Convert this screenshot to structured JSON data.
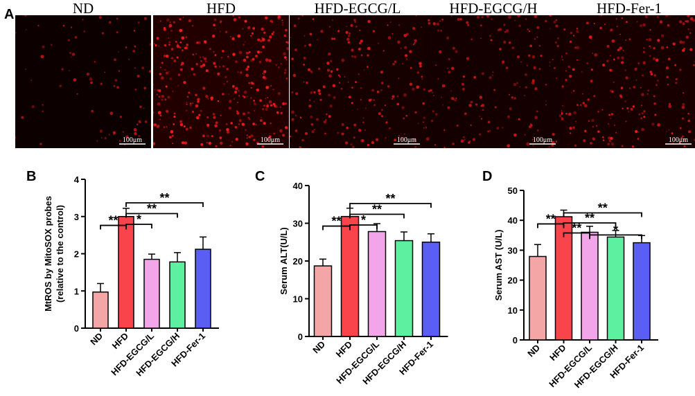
{
  "panels": {
    "a": "A",
    "b": "B",
    "c": "C",
    "d": "D"
  },
  "micrographs": {
    "scale_bar_label": "100μm",
    "dot_color": "#ff1a1a",
    "groups": [
      {
        "title": "ND",
        "dot_density": 0.15,
        "brightness": 0.55
      },
      {
        "title": "HFD",
        "dot_density": 1.0,
        "brightness": 1.0
      },
      {
        "title": "HFD-EGCG/L",
        "dot_density": 0.55,
        "brightness": 0.8
      },
      {
        "title": "HFD-EGCG/H",
        "dot_density": 0.45,
        "brightness": 0.7
      },
      {
        "title": "HFD-Fer-1",
        "dot_density": 0.6,
        "brightness": 0.85
      }
    ]
  },
  "chart_data": [
    {
      "type": "bar",
      "panel": "B",
      "categories": [
        "ND",
        "HFD",
        "HFD-EGCG/L",
        "HFD-EGCG/H",
        "HFD-Fer-1"
      ],
      "values": [
        0.97,
        3.0,
        1.85,
        1.78,
        2.12
      ],
      "errors": [
        0.23,
        0.22,
        0.14,
        0.25,
        0.33
      ],
      "colors": [
        "#f4a5a5",
        "#f8444a",
        "#f2a5e8",
        "#5cf0a0",
        "#5b5ef5"
      ],
      "ylabel": [
        "MtROS by MitoSOX probes",
        "(relative to the control)"
      ],
      "ylim": [
        0,
        4
      ],
      "yticks": [
        0,
        1,
        2,
        3,
        4
      ],
      "significance": [
        {
          "from": 0,
          "to": 1,
          "label": "**"
        },
        {
          "from": 1,
          "to": 2,
          "label": "*"
        },
        {
          "from": 1,
          "to": 3,
          "label": "**"
        },
        {
          "from": 1,
          "to": 4,
          "label": "**"
        }
      ]
    },
    {
      "type": "bar",
      "panel": "C",
      "categories": [
        "ND",
        "HFD",
        "HFD-EGCG/L",
        "HFD-EGCG/H",
        "HFD-Fer-1"
      ],
      "values": [
        18.7,
        31.8,
        27.8,
        25.4,
        25.0
      ],
      "errors": [
        1.8,
        2.2,
        2.1,
        2.3,
        2.2
      ],
      "colors": [
        "#f4a5a5",
        "#f8444a",
        "#f2a5e8",
        "#5cf0a0",
        "#5b5ef5"
      ],
      "ylabel": [
        "Serum ALT(U/L)"
      ],
      "ylim": [
        0,
        40
      ],
      "yticks": [
        0,
        10,
        20,
        30,
        40
      ],
      "significance": [
        {
          "from": 0,
          "to": 1,
          "label": "**"
        },
        {
          "from": 1,
          "to": 2,
          "label": "*"
        },
        {
          "from": 1,
          "to": 3,
          "label": "**"
        },
        {
          "from": 1,
          "to": 4,
          "label": "**"
        }
      ]
    },
    {
      "type": "bar",
      "panel": "D",
      "categories": [
        "ND",
        "HFD",
        "HFD-EGCG/L",
        "HFD-EGCG/H",
        "HFD-Fer-1"
      ],
      "values": [
        27.9,
        41.2,
        36.0,
        34.4,
        32.5
      ],
      "errors": [
        4.0,
        2.2,
        2.0,
        2.2,
        2.4
      ],
      "colors": [
        "#f4a5a5",
        "#f8444a",
        "#f2a5e8",
        "#5cf0a0",
        "#5b5ef5"
      ],
      "ylabel": [
        "Serum AST (U/L)"
      ],
      "ylim": [
        0,
        50
      ],
      "yticks": [
        0,
        10,
        20,
        30,
        40,
        50
      ],
      "significance": [
        {
          "from": 0,
          "to": 1,
          "label": "**"
        },
        {
          "from": 1,
          "to": 2,
          "label": "**"
        },
        {
          "from": 1,
          "to": 3,
          "label": "**"
        },
        {
          "from": 1,
          "to": 4,
          "label": "**"
        },
        {
          "from": 2,
          "to": 4,
          "label": "*"
        }
      ]
    }
  ]
}
